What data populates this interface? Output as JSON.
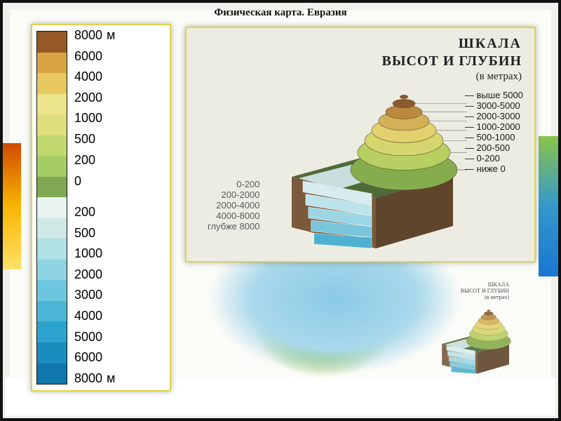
{
  "title": "Физическая карта. Евразия",
  "page_bg": "#ffffff",
  "frame_border_color": "#111111",
  "panel_border_color": "#e1d34a",
  "scale": {
    "unit_top": "м",
    "unit_bottom": "м",
    "label_fontsize": 18,
    "segments": [
      {
        "color": "#955a28"
      },
      {
        "color": "#d9a441"
      },
      {
        "color": "#e7c85f"
      },
      {
        "color": "#ece48a"
      },
      {
        "color": "#dfe07b"
      },
      {
        "color": "#bfd96f"
      },
      {
        "color": "#a5cc63"
      },
      {
        "color": "#7ea851"
      },
      {
        "color": "#e6f3ef"
      },
      {
        "color": "#cfe8e6"
      },
      {
        "color": "#aee0e6"
      },
      {
        "color": "#8fd4e2"
      },
      {
        "color": "#6cc7de"
      },
      {
        "color": "#4cb7d6"
      },
      {
        "color": "#2ca3cc"
      },
      {
        "color": "#1a8dbe"
      },
      {
        "color": "#0f77ae"
      }
    ],
    "labels": [
      {
        "text": "8000",
        "pos_pct": 0
      },
      {
        "text": "6000",
        "pos_pct": 5.9
      },
      {
        "text": "4000",
        "pos_pct": 11.8
      },
      {
        "text": "2000",
        "pos_pct": 17.6
      },
      {
        "text": "1000",
        "pos_pct": 23.5
      },
      {
        "text": "500",
        "pos_pct": 29.4
      },
      {
        "text": "200",
        "pos_pct": 35.3
      },
      {
        "text": "0",
        "pos_pct": 41.2
      },
      {
        "text": "200",
        "pos_pct": 50.0
      },
      {
        "text": "500",
        "pos_pct": 55.9
      },
      {
        "text": "1000",
        "pos_pct": 61.8
      },
      {
        "text": "2000",
        "pos_pct": 67.6
      },
      {
        "text": "3000",
        "pos_pct": 73.5
      },
      {
        "text": "4000",
        "pos_pct": 79.4
      },
      {
        "text": "5000",
        "pos_pct": 85.3
      },
      {
        "text": "6000",
        "pos_pct": 91.1
      },
      {
        "text": "8000",
        "pos_pct": 97.0
      }
    ]
  },
  "diagram": {
    "title_line1": "ШКАЛА",
    "title_line2": "ВЫСОТ И ГЛУБИН",
    "title_line3": "(в метрах)",
    "panel_bg": "#ecece2",
    "elevation_labels": [
      "выше 5000",
      "3000-5000",
      "2000-3000",
      "1000-2000",
      "500-1000",
      "200-500",
      "0-200",
      "ниже 0"
    ],
    "depth_labels": [
      "0-200",
      "200-2000",
      "2000-4000",
      "4000-8000",
      "глубже 8000"
    ],
    "mountain_bands": [
      "#8a5a2c",
      "#b98a3e",
      "#d3b157",
      "#e3d06e",
      "#d6d66e",
      "#b8cf62",
      "#86ad4d"
    ],
    "sea_bands": [
      "#d7ecef",
      "#bde3ea",
      "#9cd6e4",
      "#79c6dc",
      "#4fb1d1"
    ],
    "block_side_color": "#7a5a3a",
    "block_side_dark": "#5f452c",
    "lowland_color": "#4f6b38"
  },
  "minimap": {
    "title_l1": "ШКАЛА",
    "title_l2": "ВЫСОТ И ГЛУБИН",
    "title_l3": "(в метрах)"
  }
}
